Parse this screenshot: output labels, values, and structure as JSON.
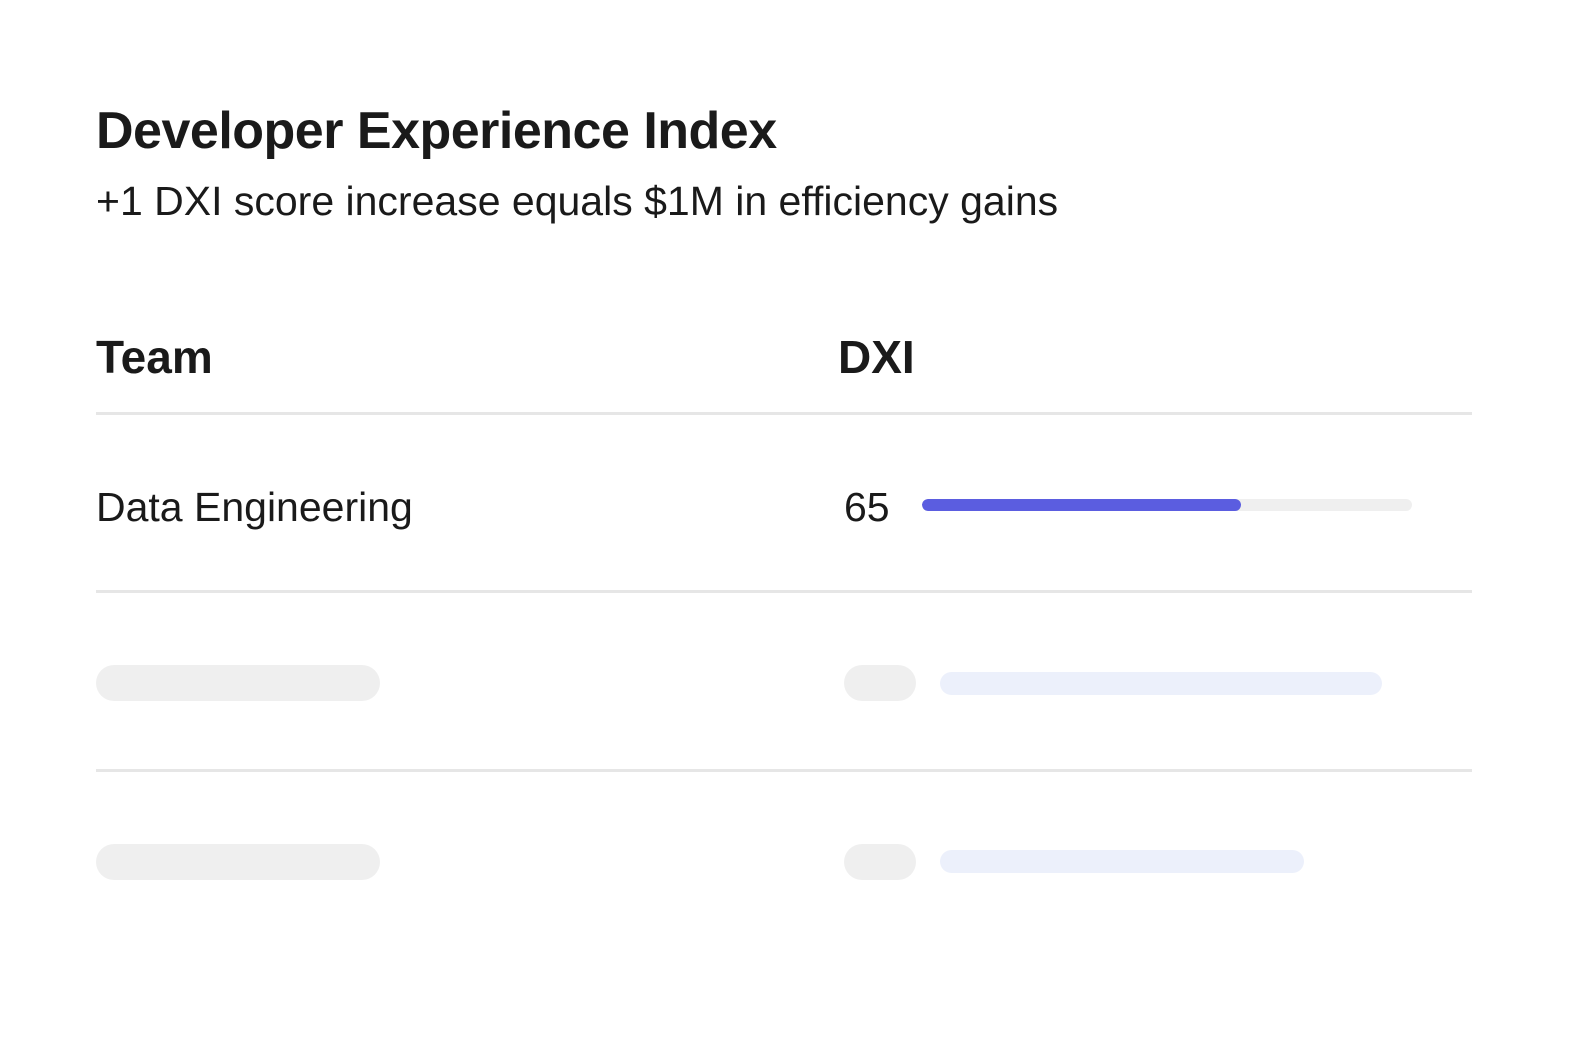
{
  "header": {
    "title": "Developer Experience Index",
    "subtitle": "+1 DXI score increase equals $1M in efficiency gains"
  },
  "table": {
    "columns": [
      "Team",
      "DXI"
    ],
    "rows": [
      {
        "team": "Data Engineering",
        "dxi": "65",
        "progress": 0.65
      }
    ],
    "placeholder_rows": 2
  },
  "colors": {
    "accent": "#5b5de0",
    "track": "#efefef",
    "skeleton": "#efefef",
    "skeleton_bar": "#ecf0fb",
    "divider": "#e6e6e6",
    "text": "#1a1a1a"
  }
}
